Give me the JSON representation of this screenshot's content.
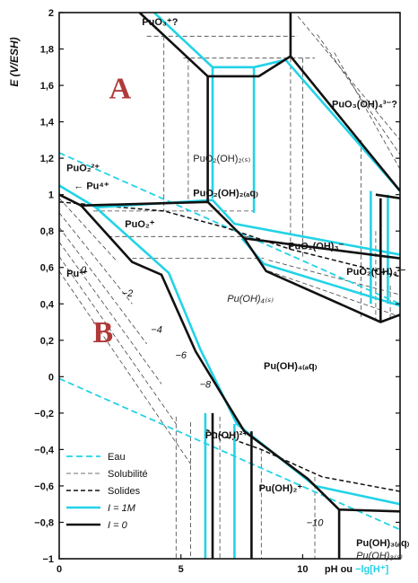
{
  "chart_data": {
    "type": "line",
    "title": "",
    "ylabel": "E (V/ESH)",
    "xlabel": "pH ou",
    "xlabel_cyan": "−lg[H⁺]",
    "xlim": [
      0,
      14
    ],
    "ylim": [
      -1,
      2
    ],
    "x_ticks": [
      {
        "v": 0,
        "label": "0"
      },
      {
        "v": 5,
        "label": "5"
      },
      {
        "v": 10,
        "label": "10"
      }
    ],
    "y_ticks": [
      {
        "v": 2,
        "label": "2"
      },
      {
        "v": 1.8,
        "label": "1,8"
      },
      {
        "v": 1.6,
        "label": "1,6"
      },
      {
        "v": 1.4,
        "label": "1,4"
      },
      {
        "v": 1.2,
        "label": "1,2"
      },
      {
        "v": 1,
        "label": "1"
      },
      {
        "v": 0.8,
        "label": "0,8"
      },
      {
        "v": 0.6,
        "label": "0,6"
      },
      {
        "v": 0.4,
        "label": "0,4"
      },
      {
        "v": 0.2,
        "label": "0,2"
      },
      {
        "v": 0,
        "label": "0"
      },
      {
        "v": -0.2,
        "label": "−0,2"
      },
      {
        "v": -0.4,
        "label": "−0,4"
      },
      {
        "v": -0.6,
        "label": "−0,6"
      },
      {
        "v": -0.8,
        "label": "−0,8"
      },
      {
        "v": -1,
        "label": "−1"
      }
    ],
    "colors": {
      "cyan": "#22d3e6",
      "black": "#111111",
      "gray": "#444444"
    },
    "series": [
      {
        "name": "Eau",
        "style": "cyan-dashed",
        "lines": [
          [
            [
              0,
              1.23
            ],
            [
              14,
              0.4
            ]
          ],
          [
            [
              0,
              -0.01
            ],
            [
              14,
              -0.84
            ]
          ]
        ]
      },
      {
        "name": "I = 0",
        "style": "black-thick",
        "lines": [
          [
            [
              3.3,
              2.0
            ],
            [
              6.1,
              1.65
            ],
            [
              8.2,
              1.65
            ],
            [
              9.5,
              1.76
            ],
            [
              14,
              1.02
            ]
          ],
          [
            [
              6.1,
              1.65
            ],
            [
              6.1,
              0.96
            ]
          ],
          [
            [
              9.5,
              2.0
            ],
            [
              9.5,
              1.76
            ]
          ],
          [
            [
              0,
              1.0
            ],
            [
              0.9,
              0.94
            ],
            [
              6.1,
              0.96
            ],
            [
              7.6,
              0.76
            ],
            [
              14,
              0.65
            ]
          ],
          [
            [
              0.9,
              0.94
            ],
            [
              3.0,
              0.63
            ],
            [
              4.2,
              0.56
            ],
            [
              5.6,
              0.14
            ],
            [
              7.6,
              -0.3
            ],
            [
              10.2,
              -0.56
            ],
            [
              11.5,
              -0.73
            ],
            [
              14,
              -0.74
            ]
          ],
          [
            [
              7.6,
              0.76
            ],
            [
              8.5,
              0.58
            ],
            [
              13.2,
              0.3
            ],
            [
              14,
              0.34
            ]
          ],
          [
            [
              13.2,
              0.3
            ],
            [
              13.2,
              0.98
            ]
          ],
          [
            [
              13.0,
              1.0
            ],
            [
              14,
              0.98
            ]
          ],
          [
            [
              6.3,
              -0.2
            ],
            [
              6.3,
              -1.0
            ]
          ],
          [
            [
              7.9,
              -0.3
            ],
            [
              7.9,
              -1.0
            ]
          ],
          [
            [
              11.5,
              -0.73
            ],
            [
              11.5,
              -1.0
            ]
          ]
        ]
      },
      {
        "name": "I = 1M",
        "style": "cyan-thick",
        "lines": [
          [
            [
              3.9,
              2.0
            ],
            [
              6.3,
              1.7
            ],
            [
              8.0,
              1.7
            ],
            [
              9.3,
              1.74
            ],
            [
              14,
              1.02
            ]
          ],
          [
            [
              6.3,
              1.7
            ],
            [
              6.3,
              0.98
            ]
          ],
          [
            [
              8.0,
              1.7
            ],
            [
              8.0,
              0.9
            ]
          ],
          [
            [
              0,
              1.05
            ],
            [
              1.5,
              0.93
            ],
            [
              6.3,
              0.97
            ],
            [
              7.2,
              0.84
            ],
            [
              14,
              0.67
            ]
          ],
          [
            [
              1.5,
              0.93
            ],
            [
              4.5,
              0.57
            ],
            [
              5.8,
              0.15
            ],
            [
              7.3,
              -0.26
            ],
            [
              10.5,
              -0.6
            ],
            [
              14,
              -0.7
            ]
          ],
          [
            [
              7.5,
              0.76
            ],
            [
              8.4,
              0.62
            ],
            [
              14,
              0.39
            ]
          ],
          [
            [
              12.8,
              1.02
            ],
            [
              12.8,
              0.4
            ]
          ],
          [
            [
              13.5,
              1.0
            ],
            [
              13.5,
              0.4
            ]
          ],
          [
            [
              6.0,
              -0.2
            ],
            [
              6.0,
              -1.0
            ]
          ],
          [
            [
              7.2,
              -0.26
            ],
            [
              7.2,
              -1.0
            ]
          ]
        ]
      },
      {
        "name": "Solides",
        "style": "black-dashed",
        "lines": [
          [
            [
              0,
              0.96
            ],
            [
              4.3,
              0.91
            ],
            [
              6.8,
              0.82
            ],
            [
              9.5,
              0.7
            ],
            [
              14,
              0.55
            ]
          ],
          [
            [
              6.0,
              -0.29
            ],
            [
              8.3,
              -0.4
            ],
            [
              10.8,
              -0.55
            ],
            [
              14,
              -0.63
            ]
          ]
        ]
      },
      {
        "name": "Solubilité",
        "style": "thin-dashed",
        "lines": [
          [
            [
              0,
              0.98
            ],
            [
              2.4,
              0.63
            ]
          ],
          [
            [
              0,
              0.9
            ],
            [
              3.0,
              0.4
            ]
          ],
          [
            [
              0,
              0.82
            ],
            [
              3.6,
              0.18
            ]
          ],
          [
            [
              0,
              0.74
            ],
            [
              4.2,
              -0.04
            ]
          ],
          [
            [
              0,
              0.66
            ],
            [
              4.8,
              -0.26
            ]
          ],
          [
            [
              0,
              0.58
            ],
            [
              5.4,
              -0.48
            ]
          ],
          [
            [
              4.8,
              -0.22
            ],
            [
              4.8,
              -1.0
            ]
          ],
          [
            [
              5.4,
              -0.25
            ],
            [
              5.4,
              -1.0
            ]
          ],
          [
            [
              6.6,
              -0.22
            ],
            [
              6.6,
              -1.0
            ]
          ],
          [
            [
              8.3,
              -0.4
            ],
            [
              8.3,
              -1.0
            ]
          ],
          [
            [
              10.5,
              -0.55
            ],
            [
              10.5,
              -1.0
            ]
          ],
          [
            [
              4.3,
              1.87
            ],
            [
              4.3,
              0.91
            ]
          ],
          [
            [
              5.3,
              1.75
            ],
            [
              5.3,
              0.95
            ]
          ],
          [
            [
              9.5,
              1.87
            ],
            [
              9.5,
              0.69
            ]
          ],
          [
            [
              10.0,
              1.75
            ],
            [
              10.0,
              0.66
            ]
          ],
          [
            [
              3.6,
              1.87
            ],
            [
              9.8,
              1.87
            ]
          ],
          [
            [
              5.1,
              1.75
            ],
            [
              10.5,
              1.75
            ]
          ],
          [
            [
              1.4,
              0.91
            ],
            [
              8.0,
              0.91
            ]
          ],
          [
            [
              2.0,
              0.77
            ],
            [
              7.8,
              0.77
            ]
          ],
          [
            [
              3.0,
              0.65
            ],
            [
              8.4,
              0.65
            ]
          ],
          [
            [
              9.8,
              1.98
            ],
            [
              14,
              1.3
            ]
          ],
          [
            [
              10.6,
              1.88
            ],
            [
              14,
              1.22
            ]
          ],
          [
            [
              11.3,
              1.78
            ],
            [
              14,
              1.14
            ]
          ],
          [
            [
              8.6,
              0.58
            ],
            [
              14,
              0.33
            ]
          ],
          [
            [
              8.6,
              0.64
            ],
            [
              14,
              0.45
            ]
          ],
          [
            [
              12.4,
              1.3
            ],
            [
              12.4,
              0.32
            ]
          ],
          [
            [
              13.0,
              0.8
            ],
            [
              13.0,
              0.32
            ]
          ],
          [
            [
              13.6,
              0.5
            ],
            [
              13.6,
              0.32
            ]
          ]
        ]
      }
    ],
    "contour_labels": [
      {
        "text": "0",
        "x": 1.0,
        "y": 0.57
      },
      {
        "text": "−2",
        "x": 2.8,
        "y": 0.44
      },
      {
        "text": "−4",
        "x": 4.0,
        "y": 0.24
      },
      {
        "text": "−6",
        "x": 5.0,
        "y": 0.1
      },
      {
        "text": "−8",
        "x": 6.0,
        "y": -0.06
      },
      {
        "text": "−10",
        "x": 10.5,
        "y": -0.82
      }
    ],
    "species_labels": [
      {
        "text": "PuO₃⁺?",
        "x": 3.4,
        "y": 1.93,
        "style": "b"
      },
      {
        "text": "PuO₃(OH)₄³⁻?",
        "x": 11.2,
        "y": 1.48,
        "style": "b"
      },
      {
        "text": "PuO₂(OH)₂₍ₛ₎",
        "x": 5.5,
        "y": 1.18,
        "style": "n"
      },
      {
        "text": "PuO₂(OH)₂₍ₐq₎",
        "x": 5.5,
        "y": 0.99,
        "style": "b"
      },
      {
        "text": "PuO₂²⁺",
        "x": 0.3,
        "y": 1.13,
        "style": "b"
      },
      {
        "text": "← Pu⁴⁺",
        "x": 0.6,
        "y": 1.03,
        "style": "b"
      },
      {
        "text": "PuO₂⁺",
        "x": 2.7,
        "y": 0.82,
        "style": "b"
      },
      {
        "text": "PuO₂(OH)₃⁻",
        "x": 9.4,
        "y": 0.7,
        "style": "b"
      },
      {
        "text": "PuO₂(OH)₄²⁻",
        "x": 11.8,
        "y": 0.56,
        "style": "b"
      },
      {
        "text": "Pu³⁺",
        "x": 0.3,
        "y": 0.55,
        "style": "b"
      },
      {
        "text": "Pu(OH)₄₍ₛ₎",
        "x": 6.9,
        "y": 0.41,
        "style": "i"
      },
      {
        "text": "Pu(OH)₄₍ₐq₎",
        "x": 8.4,
        "y": 0.04,
        "style": "b"
      },
      {
        "text": "Pu(OH)²⁺",
        "x": 6.0,
        "y": -0.34,
        "style": "b"
      },
      {
        "text": "Pu(OH)₂⁺",
        "x": 8.2,
        "y": -0.63,
        "style": "b"
      },
      {
        "text": "Pu(OH)₃₍ₐq₎",
        "x": 12.2,
        "y": -0.93,
        "style": "b"
      },
      {
        "text": "Pu(OH)₃₍ₛ₎",
        "x": 12.2,
        "y": -1.0,
        "style": "i"
      }
    ],
    "region_letters": [
      {
        "text": "A",
        "x": 2.5,
        "y": 1.53
      },
      {
        "text": "B",
        "x": 1.8,
        "y": 0.19
      }
    ],
    "legend": {
      "position": "bottom-left",
      "entries": [
        {
          "label": "Eau",
          "style": "cyan-dashed"
        },
        {
          "label": "Solubilité",
          "style": "thin-dashed"
        },
        {
          "label": "Solides",
          "style": "black-dashed"
        },
        {
          "label": "I = 1M",
          "style": "cyan-thick"
        },
        {
          "label": "I = 0",
          "style": "black-thick"
        }
      ]
    }
  }
}
